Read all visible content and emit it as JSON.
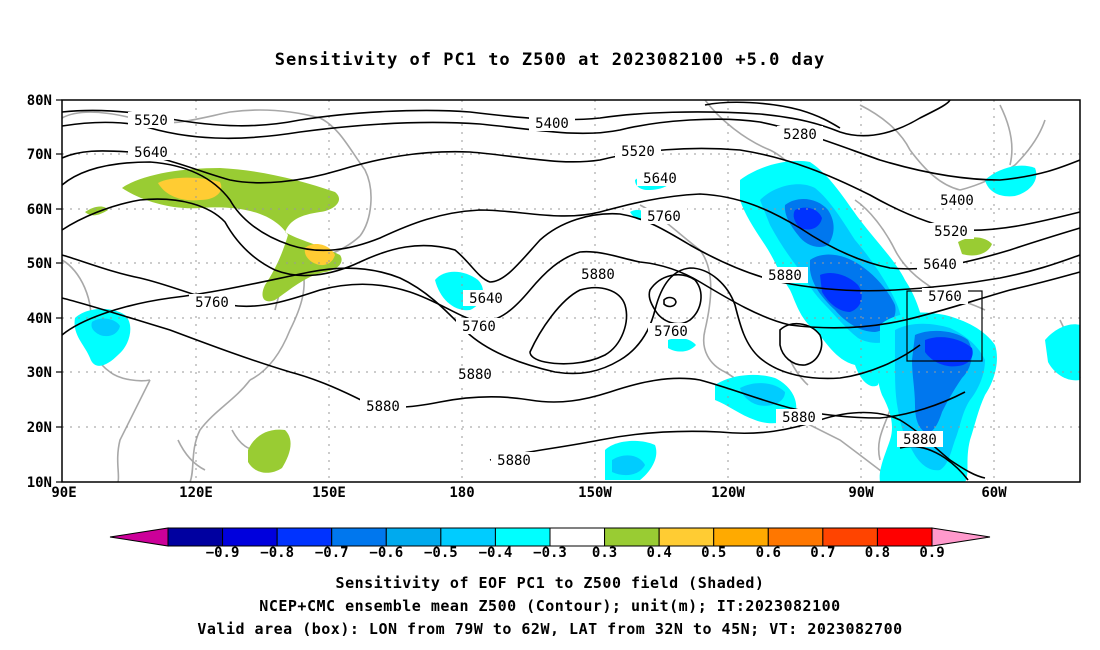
{
  "title": "Sensitivity of PC1 to Z500 at 2023082100 +5.0 day",
  "lat_labels": [
    "80N",
    "70N",
    "60N",
    "50N",
    "40N",
    "30N",
    "20N",
    "10N"
  ],
  "lon_labels": [
    "90E",
    "120E",
    "150E",
    "180",
    "150W",
    "120W",
    "90W",
    "60W"
  ],
  "contour_labels": [
    {
      "text": "5520",
      "key": "a"
    },
    {
      "text": "5640",
      "key": "b"
    },
    {
      "text": "5760",
      "key": "c"
    },
    {
      "text": "5400",
      "key": "d"
    },
    {
      "text": "5520",
      "key": "e"
    },
    {
      "text": "5640",
      "key": "f"
    },
    {
      "text": "5760",
      "key": "g"
    },
    {
      "text": "5880",
      "key": "h"
    },
    {
      "text": "5640",
      "key": "i"
    },
    {
      "text": "5760",
      "key": "j"
    },
    {
      "text": "5880",
      "key": "k"
    },
    {
      "text": "5880",
      "key": "l"
    },
    {
      "text": "5880",
      "key": "m"
    },
    {
      "text": "5760",
      "key": "n"
    },
    {
      "text": "5280",
      "key": "o"
    },
    {
      "text": "5400",
      "key": "p"
    },
    {
      "text": "5520",
      "key": "q"
    },
    {
      "text": "5640",
      "key": "r"
    },
    {
      "text": "5880",
      "key": "s"
    },
    {
      "text": "5760",
      "key": "t"
    },
    {
      "text": "5880",
      "key": "u"
    },
    {
      "text": "5880",
      "key": "v"
    }
  ],
  "colorbar": {
    "labels": [
      "−0.9",
      "−0.8",
      "−0.7",
      "−0.6",
      "−0.5",
      "−0.4",
      "−0.3",
      "0.3",
      "0.4",
      "0.5",
      "0.6",
      "0.7",
      "0.8",
      "0.9"
    ],
    "colors": [
      "#0000a0",
      "#0000dd",
      "#0033ff",
      "#0077ee",
      "#00aaee",
      "#00ccff",
      "#00ffff",
      "#ffffff",
      "#99cc33",
      "#ffcc33",
      "#ffaa00",
      "#ff7700",
      "#ff4400",
      "#ff0000"
    ],
    "low_extend_color": "#cc0099",
    "high_extend_color": "#ff99cc"
  },
  "captions": [
    "Sensitivity of EOF PC1 to Z500 field (Shaded)",
    "NCEP+CMC ensemble mean Z500 (Contour); unit(m); IT:2023082100",
    "Valid area (box): LON from 79W to 62W, LAT from 32N to 45N; VT: 2023082700"
  ],
  "colors": {
    "coast": "#a8a8a8",
    "contour": "#000000",
    "grid": "#999999"
  }
}
